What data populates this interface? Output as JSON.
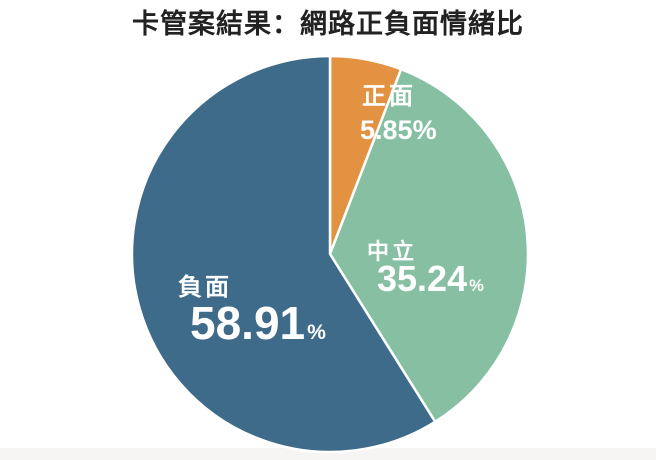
{
  "chart_data": {
    "type": "pie",
    "title": "卡管案結果：網路正負面情緒比",
    "title_color": "#222222",
    "label_color": "#ffffff",
    "slice_border_color": "#ffffff",
    "background_color": "#ffffff",
    "legend": "none",
    "start_angle_deg": 0,
    "direction": "clockwise",
    "percent_sign": "%",
    "categories": [
      "正面",
      "中立",
      "負面"
    ],
    "values": [
      5.85,
      35.24,
      58.91
    ],
    "slices": [
      {
        "name": "positive",
        "label": "正面",
        "value": 5.85,
        "value_text": "5.85",
        "color": "#e39242"
      },
      {
        "name": "neutral",
        "label": "中立",
        "value": 35.24,
        "value_text": "35.24",
        "color": "#86bfa2"
      },
      {
        "name": "negative",
        "label": "負面",
        "value": 58.91,
        "value_text": "58.91",
        "color": "#3f6b8a"
      }
    ]
  }
}
